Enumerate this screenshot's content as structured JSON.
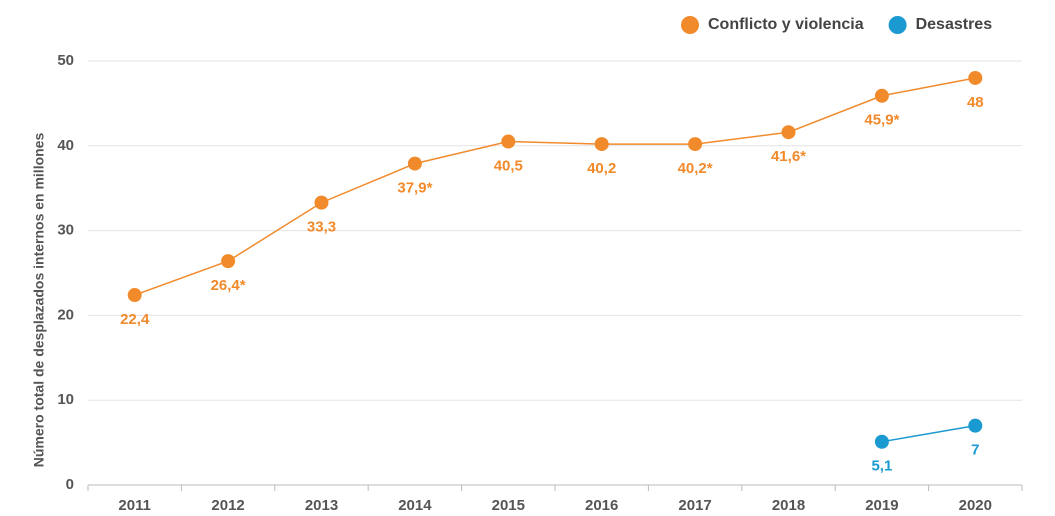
{
  "chart_data": {
    "type": "line",
    "y_label": "Número total de desplazados internos en millones",
    "categories": [
      "2011",
      "2012",
      "2013",
      "2014",
      "2015",
      "2016",
      "2017",
      "2018",
      "2019",
      "2020"
    ],
    "series": [
      {
        "name": "Conflicto y violencia",
        "color": "#f18a2b",
        "values": [
          22.4,
          26.4,
          33.3,
          37.9,
          40.5,
          40.2,
          40.2,
          41.6,
          45.9,
          48
        ],
        "value_labels": [
          "22,4",
          "26,4*",
          "33,3",
          "37,9*",
          "40,5",
          "40,2",
          "40,2*",
          "41,6*",
          "45,9*",
          "48"
        ]
      },
      {
        "name": "Desastres",
        "color": "#1a9ad0",
        "values": [
          null,
          null,
          null,
          null,
          null,
          null,
          null,
          null,
          5.1,
          7
        ],
        "value_labels": [
          null,
          null,
          null,
          null,
          null,
          null,
          null,
          null,
          "5,1",
          "7"
        ]
      }
    ],
    "ylim": [
      0,
      50
    ],
    "yticks": [
      0,
      10,
      20,
      30,
      40,
      50
    ],
    "grid": true,
    "legend": "top-right"
  }
}
